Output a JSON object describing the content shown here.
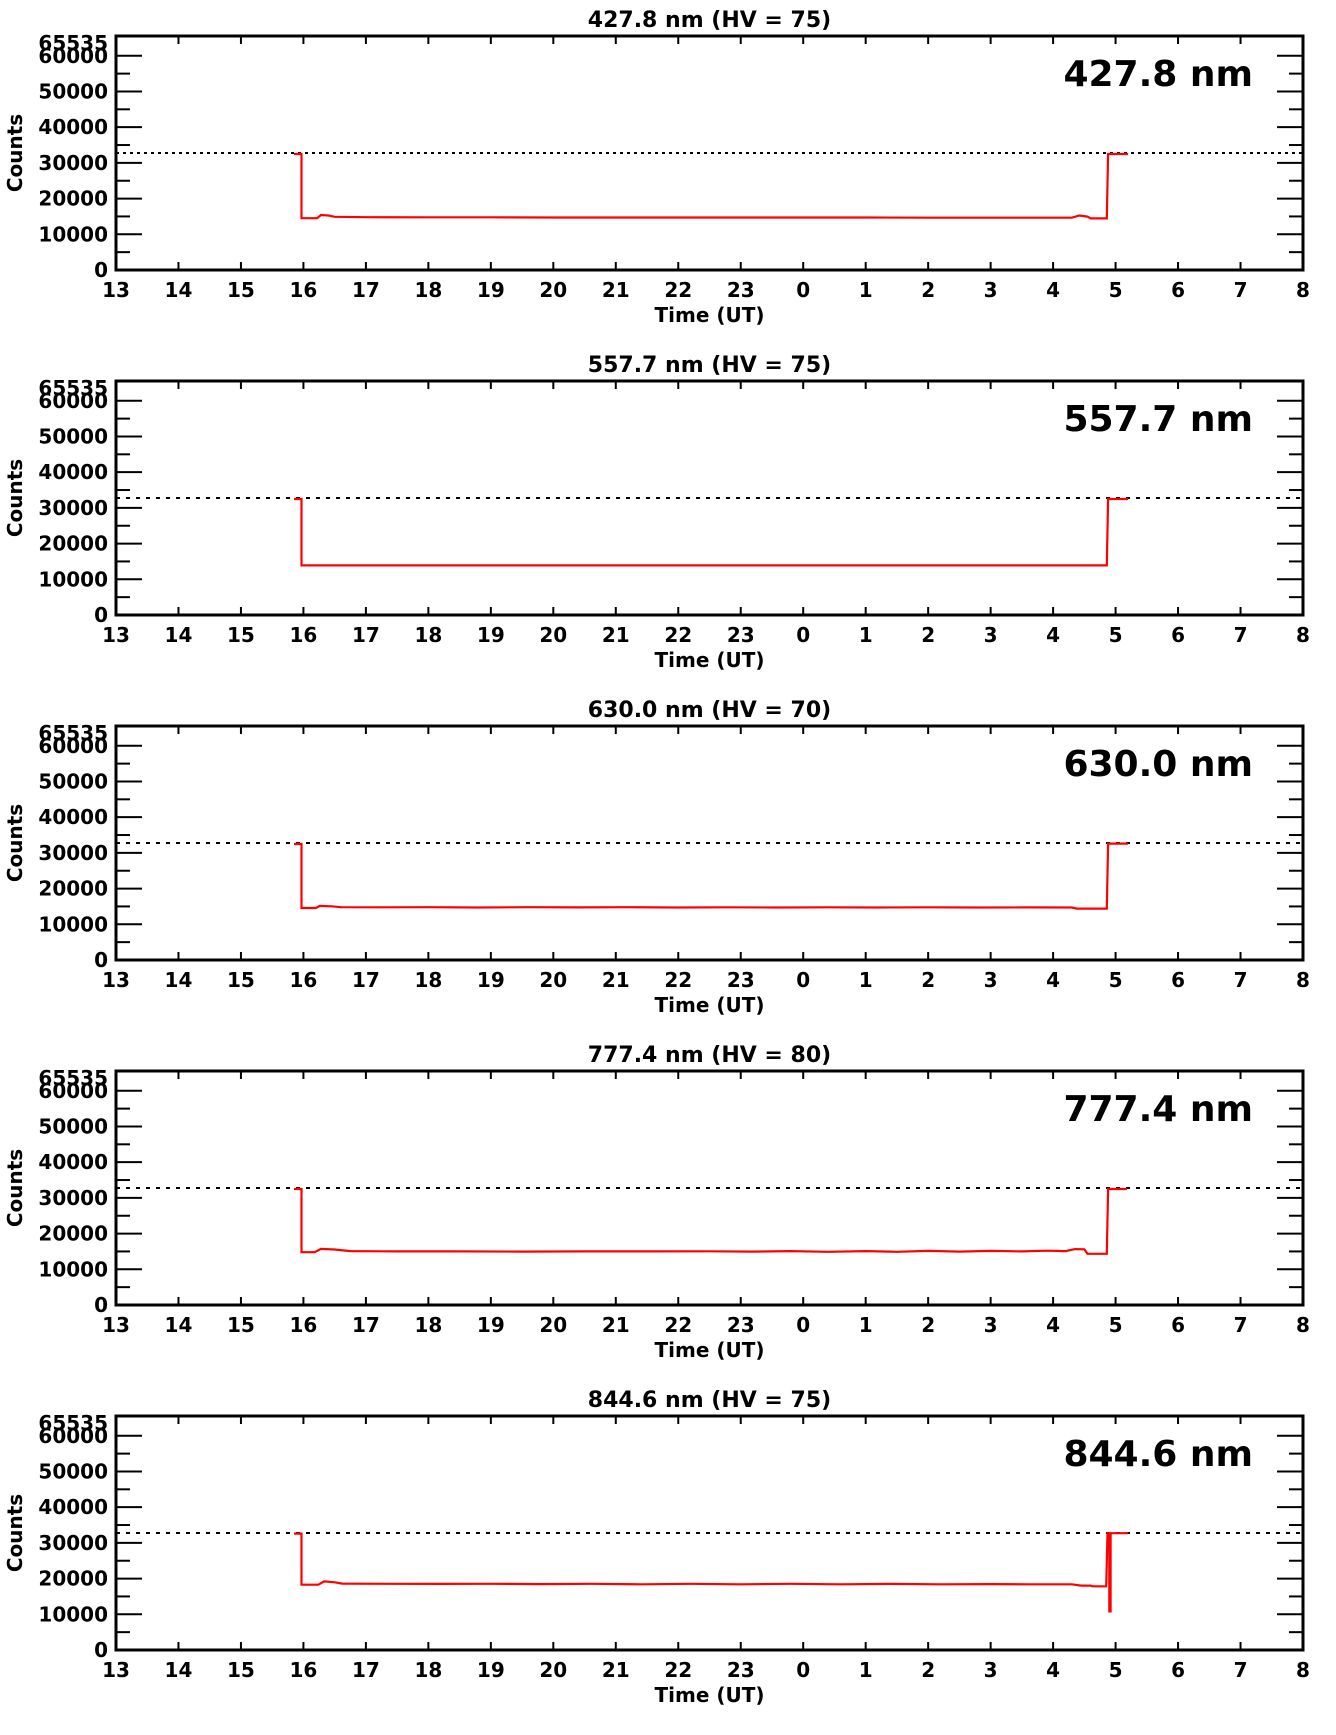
{
  "figure": {
    "background_color": "#ffffff",
    "axis_color": "#000000",
    "line_color": "#ff0000",
    "ylabel": "Counts",
    "xlabel": "Time (UT)",
    "x_tick_labels": [
      "13",
      "14",
      "15",
      "16",
      "17",
      "18",
      "19",
      "20",
      "21",
      "22",
      "23",
      "0",
      "1",
      "2",
      "3",
      "4",
      "5",
      "6",
      "7",
      "8"
    ],
    "y_tick_labels": [
      "0",
      "10000",
      "20000",
      "30000",
      "40000",
      "50000",
      "60000",
      "65535"
    ]
  },
  "chart_data": [
    {
      "type": "line",
      "title": "427.8 nm (HV = 75)",
      "corner_label": "427.8 nm",
      "wavelength_nm": "427.8",
      "hv": "75",
      "xlabel": "Time (UT)",
      "ylabel": "Counts",
      "x_domain_hours": [
        13,
        32
      ],
      "x_tick_labels": [
        "13",
        "14",
        "15",
        "16",
        "17",
        "18",
        "19",
        "20",
        "21",
        "22",
        "23",
        "0",
        "1",
        "2",
        "3",
        "4",
        "5",
        "6",
        "7",
        "8"
      ],
      "y_domain": [
        0,
        65535
      ],
      "y_major_ticks": [
        0,
        10000,
        20000,
        30000,
        40000,
        50000,
        60000
      ],
      "y_minor_step": 5000,
      "y_top_label": 65535,
      "threshold_value": 32767,
      "line_color": "#ff0000",
      "dash_pattern": "3 4",
      "points": [
        [
          15.85,
          32500
        ],
        [
          15.97,
          32500
        ],
        [
          15.97,
          14500
        ],
        [
          16.22,
          14500
        ],
        [
          16.28,
          15400
        ],
        [
          16.4,
          15250
        ],
        [
          16.5,
          14900
        ],
        [
          17.0,
          14800
        ],
        [
          18.0,
          14750
        ],
        [
          19.0,
          14750
        ],
        [
          20.0,
          14700
        ],
        [
          21.0,
          14700
        ],
        [
          22.0,
          14700
        ],
        [
          23.0,
          14700
        ],
        [
          24.0,
          14700
        ],
        [
          25.0,
          14700
        ],
        [
          26.0,
          14650
        ],
        [
          27.0,
          14650
        ],
        [
          28.0,
          14650
        ],
        [
          28.3,
          14650
        ],
        [
          28.42,
          15250
        ],
        [
          28.55,
          14950
        ],
        [
          28.6,
          14450
        ],
        [
          28.86,
          14450
        ],
        [
          28.88,
          32500
        ],
        [
          29.2,
          32500
        ]
      ]
    },
    {
      "type": "line",
      "title": "557.7 nm (HV = 75)",
      "corner_label": "557.7 nm",
      "wavelength_nm": "557.7",
      "hv": "75",
      "xlabel": "Time (UT)",
      "ylabel": "Counts",
      "x_domain_hours": [
        13,
        32
      ],
      "x_tick_labels": [
        "13",
        "14",
        "15",
        "16",
        "17",
        "18",
        "19",
        "20",
        "21",
        "22",
        "23",
        "0",
        "1",
        "2",
        "3",
        "4",
        "5",
        "6",
        "7",
        "8"
      ],
      "y_domain": [
        0,
        65535
      ],
      "y_major_ticks": [
        0,
        10000,
        20000,
        30000,
        40000,
        50000,
        60000
      ],
      "y_minor_step": 5000,
      "y_top_label": 65535,
      "threshold_value": 32767,
      "line_color": "#ff0000",
      "dash_pattern": "4 6",
      "points": [
        [
          15.85,
          32500
        ],
        [
          15.97,
          32500
        ],
        [
          15.97,
          13900
        ],
        [
          20.0,
          13900
        ],
        [
          24.0,
          13900
        ],
        [
          28.86,
          13900
        ],
        [
          28.88,
          32500
        ],
        [
          29.2,
          32500
        ]
      ]
    },
    {
      "type": "line",
      "title": "630.0 nm (HV = 70)",
      "corner_label": "630.0 nm",
      "wavelength_nm": "630.0",
      "hv": "70",
      "xlabel": "Time (UT)",
      "ylabel": "Counts",
      "x_domain_hours": [
        13,
        32
      ],
      "x_tick_labels": [
        "13",
        "14",
        "15",
        "16",
        "17",
        "18",
        "19",
        "20",
        "21",
        "22",
        "23",
        "0",
        "1",
        "2",
        "3",
        "4",
        "5",
        "6",
        "7",
        "8"
      ],
      "y_domain": [
        0,
        65535
      ],
      "y_major_ticks": [
        0,
        10000,
        20000,
        30000,
        40000,
        50000,
        60000
      ],
      "y_minor_step": 5000,
      "y_top_label": 65535,
      "threshold_value": 32767,
      "line_color": "#ff0000",
      "dash_pattern": "4 6",
      "points": [
        [
          15.85,
          32500
        ],
        [
          15.97,
          32500
        ],
        [
          15.97,
          14550
        ],
        [
          16.2,
          14550
        ],
        [
          16.26,
          15150
        ],
        [
          16.45,
          15050
        ],
        [
          16.6,
          14800
        ],
        [
          17.2,
          14750
        ],
        [
          18.0,
          14800
        ],
        [
          18.8,
          14700
        ],
        [
          19.6,
          14780
        ],
        [
          20.4,
          14720
        ],
        [
          21.2,
          14780
        ],
        [
          22.0,
          14700
        ],
        [
          22.8,
          14760
        ],
        [
          23.6,
          14700
        ],
        [
          24.4,
          14760
        ],
        [
          25.2,
          14700
        ],
        [
          26.0,
          14750
        ],
        [
          26.8,
          14700
        ],
        [
          27.6,
          14720
        ],
        [
          28.3,
          14700
        ],
        [
          28.38,
          14400
        ],
        [
          28.86,
          14400
        ],
        [
          28.88,
          32600
        ],
        [
          29.2,
          32600
        ]
      ]
    },
    {
      "type": "line",
      "title": "777.4 nm (HV = 80)",
      "corner_label": "777.4 nm",
      "wavelength_nm": "777.4",
      "hv": "80",
      "xlabel": "Time (UT)",
      "ylabel": "Counts",
      "x_domain_hours": [
        13,
        32
      ],
      "x_tick_labels": [
        "13",
        "14",
        "15",
        "16",
        "17",
        "18",
        "19",
        "20",
        "21",
        "22",
        "23",
        "0",
        "1",
        "2",
        "3",
        "4",
        "5",
        "6",
        "7",
        "8"
      ],
      "y_domain": [
        0,
        65535
      ],
      "y_major_ticks": [
        0,
        10000,
        20000,
        30000,
        40000,
        50000,
        60000
      ],
      "y_minor_step": 5000,
      "y_top_label": 65535,
      "threshold_value": 32767,
      "line_color": "#ff0000",
      "dash_pattern": "4 6",
      "points": [
        [
          15.85,
          32500
        ],
        [
          15.97,
          32500
        ],
        [
          15.97,
          14800
        ],
        [
          16.18,
          14800
        ],
        [
          16.28,
          15700
        ],
        [
          16.5,
          15550
        ],
        [
          16.75,
          15100
        ],
        [
          17.5,
          15000
        ],
        [
          18.5,
          15000
        ],
        [
          19.5,
          14950
        ],
        [
          20.5,
          15000
        ],
        [
          21.5,
          15000
        ],
        [
          22.5,
          15050
        ],
        [
          23.2,
          14950
        ],
        [
          23.8,
          15100
        ],
        [
          24.4,
          14900
        ],
        [
          25.0,
          15100
        ],
        [
          25.5,
          14900
        ],
        [
          26.0,
          15150
        ],
        [
          26.5,
          14950
        ],
        [
          27.0,
          15150
        ],
        [
          27.5,
          15000
        ],
        [
          27.9,
          15200
        ],
        [
          28.2,
          15100
        ],
        [
          28.35,
          15650
        ],
        [
          28.5,
          15600
        ],
        [
          28.55,
          14350
        ],
        [
          28.86,
          14350
        ],
        [
          28.88,
          32500
        ],
        [
          29.18,
          32500
        ]
      ]
    },
    {
      "type": "line",
      "title": "844.6 nm (HV = 75)",
      "corner_label": "844.6 nm",
      "wavelength_nm": "844.6",
      "hv": "75",
      "xlabel": "Time (UT)",
      "ylabel": "Counts",
      "x_domain_hours": [
        13,
        32
      ],
      "x_tick_labels": [
        "13",
        "14",
        "15",
        "16",
        "17",
        "18",
        "19",
        "20",
        "21",
        "22",
        "23",
        "0",
        "1",
        "2",
        "3",
        "4",
        "5",
        "6",
        "7",
        "8"
      ],
      "y_domain": [
        0,
        65535
      ],
      "y_major_ticks": [
        0,
        10000,
        20000,
        30000,
        40000,
        50000,
        60000
      ],
      "y_minor_step": 5000,
      "y_top_label": 65535,
      "threshold_value": 32767,
      "line_color": "#ff0000",
      "dash_pattern": "4 6",
      "points": [
        [
          15.85,
          32600
        ],
        [
          15.97,
          32600
        ],
        [
          15.97,
          18300
        ],
        [
          16.24,
          18300
        ],
        [
          16.33,
          19200
        ],
        [
          16.5,
          18950
        ],
        [
          16.62,
          18600
        ],
        [
          17.3,
          18550
        ],
        [
          18.2,
          18500
        ],
        [
          19.0,
          18550
        ],
        [
          19.8,
          18450
        ],
        [
          20.6,
          18550
        ],
        [
          21.4,
          18400
        ],
        [
          22.2,
          18550
        ],
        [
          23.0,
          18400
        ],
        [
          23.8,
          18550
        ],
        [
          24.6,
          18400
        ],
        [
          25.4,
          18500
        ],
        [
          26.2,
          18400
        ],
        [
          27.0,
          18450
        ],
        [
          27.6,
          18400
        ],
        [
          28.3,
          18400
        ],
        [
          28.45,
          18050
        ],
        [
          28.6,
          18050
        ],
        [
          28.63,
          17850
        ],
        [
          28.85,
          17850
        ],
        [
          28.87,
          32700
        ],
        [
          28.9,
          32700
        ],
        [
          28.9,
          10800
        ],
        [
          28.92,
          10800
        ],
        [
          28.92,
          32700
        ],
        [
          29.2,
          32700
        ]
      ]
    }
  ]
}
